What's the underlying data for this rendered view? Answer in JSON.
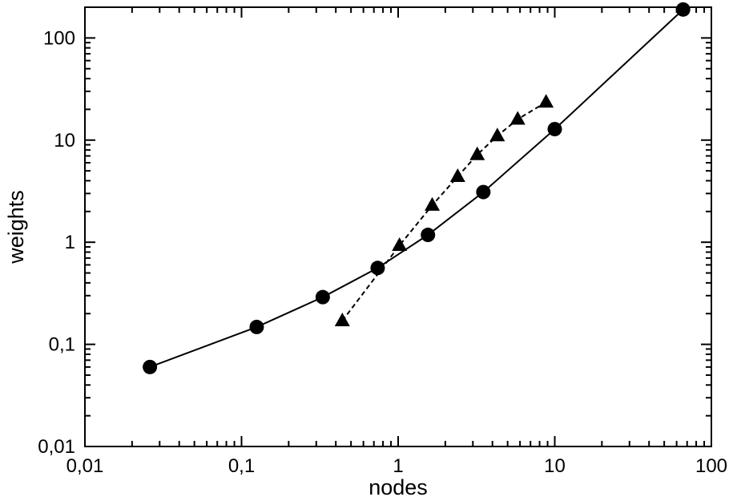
{
  "chart_data": {
    "type": "scatter",
    "xlabel": "nodes",
    "ylabel": "weights",
    "xscale": "log",
    "yscale": "log",
    "xlim": [
      0.01,
      100
    ],
    "ylim": [
      0.01,
      200
    ],
    "grid": false,
    "x_ticks": [
      {
        "value": 0.01,
        "label": "0,01"
      },
      {
        "value": 0.1,
        "label": "0,1"
      },
      {
        "value": 1,
        "label": "1"
      },
      {
        "value": 10,
        "label": "10"
      },
      {
        "value": 100,
        "label": "100"
      }
    ],
    "y_ticks": [
      {
        "value": 0.01,
        "label": "0,01"
      },
      {
        "value": 0.1,
        "label": "0,1"
      },
      {
        "value": 1,
        "label": "1"
      },
      {
        "value": 10,
        "label": "10"
      },
      {
        "value": 100,
        "label": "100"
      }
    ],
    "series": [
      {
        "marker": "circle",
        "line": "solid",
        "color": "#000000",
        "points": [
          [
            0.026,
            0.06
          ],
          [
            0.125,
            0.148
          ],
          [
            0.33,
            0.29
          ],
          [
            0.74,
            0.56
          ],
          [
            1.55,
            1.18
          ],
          [
            3.5,
            3.1
          ],
          [
            10.0,
            12.8
          ],
          [
            66.0,
            190.0
          ]
        ]
      },
      {
        "marker": "triangle",
        "line": "dashed",
        "color": "#000000",
        "points": [
          [
            0.44,
            0.17
          ],
          [
            1.02,
            0.93
          ],
          [
            1.65,
            2.3
          ],
          [
            2.4,
            4.4
          ],
          [
            3.2,
            7.2
          ],
          [
            4.3,
            11.0
          ],
          [
            5.8,
            16.0
          ],
          [
            8.8,
            23.5
          ]
        ]
      }
    ]
  }
}
